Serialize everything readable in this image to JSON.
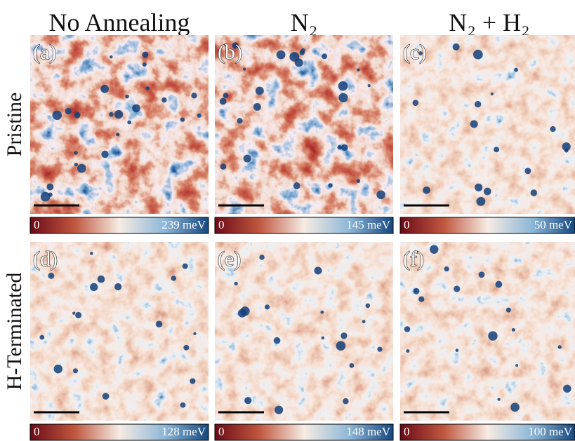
{
  "columns": [
    "No Annealing",
    "N₂",
    "N₂ + H₂"
  ],
  "rows": [
    "Pristine",
    "H-Terminated"
  ],
  "panels": [
    {
      "label": "(a)",
      "scale_min": "0",
      "scale_max": "239 meV"
    },
    {
      "label": "(b)",
      "scale_min": "0",
      "scale_max": "145 meV"
    },
    {
      "label": "(c)",
      "scale_min": "0",
      "scale_max": "50 meV"
    },
    {
      "label": "(d)",
      "scale_min": "0",
      "scale_max": "128 meV"
    },
    {
      "label": "(e)",
      "scale_min": "0",
      "scale_max": "148 meV"
    },
    {
      "label": "(f)",
      "scale_min": "0",
      "scale_max": "100 meV"
    }
  ]
}
